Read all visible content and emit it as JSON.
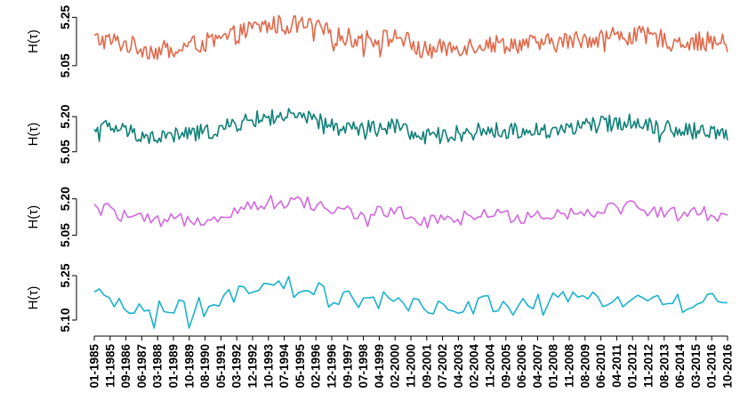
{
  "chart_data": {
    "type": "line",
    "x_start": "01-1985",
    "x_end": "10-2016",
    "x_tick_labels": [
      "01-1985",
      "11-1985",
      "09-1986",
      "06-1987",
      "03-1988",
      "01-1989",
      "10-1989",
      "08-1990",
      "05-1991",
      "03-1992",
      "12-1992",
      "10-1993",
      "07-1994",
      "05-1995",
      "02-1996",
      "12-1996",
      "09-1997",
      "07-1998",
      "04-1999",
      "02-2000",
      "11-2000",
      "09-2001",
      "07-2002",
      "04-2003",
      "02-2004",
      "11-2004",
      "09-2005",
      "06-2006",
      "04-2007",
      "01-2008",
      "11-2008",
      "08-2009",
      "06-2010",
      "04-2011",
      "01-2012",
      "11-2012",
      "08-2013",
      "06-2014",
      "03-2015",
      "01-2016",
      "10-2016"
    ],
    "panels": [
      {
        "ylabel": "H(τ)",
        "yticks": [
          "5.05",
          "5.25"
        ],
        "ytick_values": [
          5.05,
          5.25
        ],
        "ylim": [
          5.02,
          5.27
        ],
        "color": "#e0694a",
        "n_points": 382,
        "values_by_year": {
          "1985": 5.16,
          "1986": 5.15,
          "1987": 5.13,
          "1988": 5.11,
          "1989": 5.12,
          "1990": 5.14,
          "1991": 5.15,
          "1992": 5.18,
          "1993": 5.21,
          "1994": 5.22,
          "1995": 5.22,
          "1996": 5.2,
          "1997": 5.17,
          "1998": 5.16,
          "1999": 5.16,
          "2000": 5.17,
          "2001": 5.11,
          "2002": 5.12,
          "2003": 5.13,
          "2004": 5.14,
          "2005": 5.14,
          "2006": 5.14,
          "2007": 5.14,
          "2008": 5.15,
          "2009": 5.16,
          "2010": 5.17,
          "2011": 5.18,
          "2012": 5.17,
          "2013": 5.16,
          "2014": 5.15,
          "2015": 5.15,
          "2016": 5.14
        }
      },
      {
        "ylabel": "H(τ)",
        "yticks": [
          "5.05",
          "5.20"
        ],
        "ytick_values": [
          5.05,
          5.2
        ],
        "ylim": [
          5.03,
          5.25
        ],
        "color": "#0f8079",
        "n_points": 382,
        "values_by_year": {
          "1985": 5.16,
          "1986": 5.15,
          "1987": 5.13,
          "1988": 5.11,
          "1989": 5.12,
          "1990": 5.13,
          "1991": 5.14,
          "1992": 5.17,
          "1993": 5.19,
          "1994": 5.2,
          "1995": 5.2,
          "1996": 5.18,
          "1997": 5.15,
          "1998": 5.15,
          "1999": 5.15,
          "2000": 5.16,
          "2001": 5.11,
          "2002": 5.12,
          "2003": 5.13,
          "2004": 5.14,
          "2005": 5.14,
          "2006": 5.14,
          "2007": 5.14,
          "2008": 5.15,
          "2009": 5.16,
          "2010": 5.17,
          "2011": 5.18,
          "2012": 5.17,
          "2013": 5.15,
          "2014": 5.14,
          "2015": 5.14,
          "2016": 5.13
        }
      },
      {
        "ylabel": "H(τ)",
        "yticks": [
          "5.05",
          "5.20"
        ],
        "ytick_values": [
          5.05,
          5.2
        ],
        "ylim": [
          5.03,
          5.25
        ],
        "color": "#d468e0",
        "n_points": 191,
        "values_by_year": {
          "1985": 5.16,
          "1986": 5.15,
          "1987": 5.12,
          "1988": 5.1,
          "1989": 5.11,
          "1990": 5.12,
          "1991": 5.13,
          "1992": 5.16,
          "1993": 5.18,
          "1994": 5.19,
          "1995": 5.19,
          "1996": 5.17,
          "1997": 5.15,
          "1998": 5.14,
          "1999": 5.14,
          "2000": 5.15,
          "2001": 5.1,
          "2002": 5.11,
          "2003": 5.12,
          "2004": 5.13,
          "2005": 5.13,
          "2006": 5.13,
          "2007": 5.14,
          "2008": 5.14,
          "2009": 5.15,
          "2010": 5.16,
          "2011": 5.17,
          "2012": 5.16,
          "2013": 5.14,
          "2014": 5.14,
          "2015": 5.14,
          "2016": 5.13
        }
      },
      {
        "ylabel": "H(τ)",
        "yticks": [
          "5.10",
          "5.25"
        ],
        "ytick_values": [
          5.1,
          5.25
        ],
        "ylim": [
          5.07,
          5.28
        ],
        "color": "#1ab2cf",
        "n_points": 128,
        "values_by_year": {
          "1985": 5.17,
          "1986": 5.16,
          "1987": 5.14,
          "1988": 5.13,
          "1989": 5.13,
          "1990": 5.14,
          "1991": 5.15,
          "1992": 5.18,
          "1993": 5.2,
          "1994": 5.21,
          "1995": 5.21,
          "1996": 5.19,
          "1997": 5.17,
          "1998": 5.16,
          "1999": 5.16,
          "2000": 5.17,
          "2001": 5.13,
          "2002": 5.14,
          "2003": 5.15,
          "2004": 5.16,
          "2005": 5.15,
          "2006": 5.15,
          "2007": 5.15,
          "2008": 5.16,
          "2009": 5.17,
          "2010": 5.18,
          "2011": 5.18,
          "2012": 5.17,
          "2013": 5.16,
          "2014": 5.16,
          "2015": 5.16,
          "2016": 5.15
        }
      }
    ]
  }
}
